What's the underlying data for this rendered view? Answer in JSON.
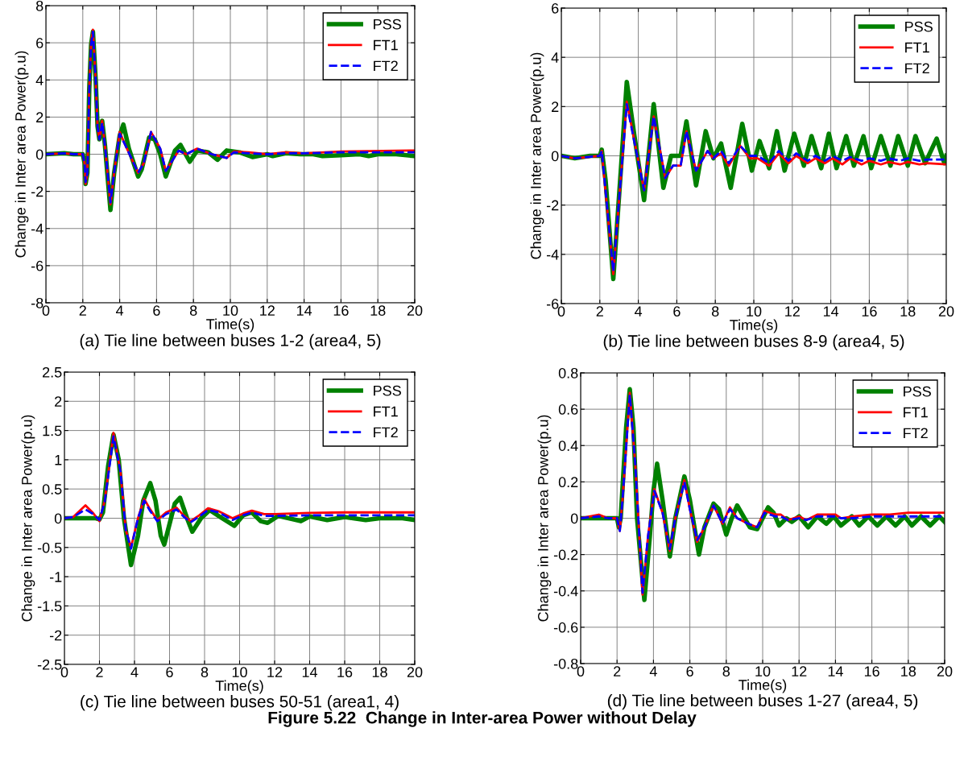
{
  "chart_data": [
    {
      "type": "line",
      "title": "(a) Tie line between buses 1-2 (area4, 5)",
      "xlabel": "Time(s)",
      "ylabel": "Change in Inter area Power(p.u)",
      "xlim": [
        0,
        20
      ],
      "ylim": [
        -8,
        8
      ],
      "xticks": [
        0,
        2,
        4,
        6,
        8,
        10,
        12,
        14,
        16,
        18,
        20
      ],
      "yticks": [
        -8,
        -6,
        -4,
        -2,
        0,
        2,
        4,
        6,
        8
      ],
      "grid": true,
      "legend": "top right",
      "series": [
        {
          "name": "PSS",
          "color": "#008000",
          "line_style": "solid",
          "x": [
            0,
            1,
            1.5,
            2,
            2.1,
            2.15,
            2.25,
            2.35,
            2.45,
            2.55,
            2.7,
            2.8,
            2.9,
            3.05,
            3.2,
            3.5,
            3.7,
            4.0,
            4.2,
            4.5,
            5.0,
            5.2,
            5.6,
            5.9,
            6.2,
            6.5,
            7.0,
            7.3,
            7.8,
            8.2,
            8.8,
            9.3,
            9.8,
            10.5,
            11.2,
            12,
            12.3,
            13,
            13.8,
            14.5,
            15,
            16,
            17,
            17.5,
            18,
            19,
            20
          ],
          "values": [
            0,
            0.05,
            0,
            0,
            -0.5,
            -1.6,
            -1.0,
            3.5,
            5.9,
            6.6,
            4,
            1.5,
            0.8,
            1.8,
            0.5,
            -3.0,
            -1.0,
            1.0,
            1.6,
            0.3,
            -1.2,
            -0.8,
            0.9,
            0.8,
            0,
            -1.2,
            0.2,
            0.5,
            -0.4,
            0.2,
            0.1,
            -0.3,
            0.2,
            0.1,
            -0.15,
            0,
            -0.1,
            0.05,
            0,
            0,
            -0.1,
            -0.05,
            0,
            -0.1,
            0,
            0,
            -0.1
          ]
        },
        {
          "name": "FT1",
          "color": "#ff0000",
          "line_style": "solid",
          "x": [
            0,
            1,
            1.5,
            2,
            2.1,
            2.15,
            2.25,
            2.35,
            2.45,
            2.55,
            2.7,
            2.8,
            2.9,
            3.05,
            3.2,
            3.5,
            3.7,
            4.0,
            4.3,
            5.0,
            5.3,
            5.7,
            6.2,
            6.5,
            7.2,
            7.6,
            8.2,
            9,
            9.8,
            10.2,
            11,
            12,
            13,
            14,
            16,
            20
          ],
          "values": [
            0,
            0.05,
            0,
            0,
            -0.5,
            -1.6,
            -1.0,
            3.5,
            6.0,
            6.7,
            4,
            1.5,
            0.8,
            1.8,
            0.5,
            -2.7,
            -1.0,
            1.2,
            0.5,
            -1.0,
            -0.5,
            1.2,
            0.3,
            -0.9,
            0.2,
            0,
            0.3,
            0,
            -0.2,
            0.15,
            0.1,
            0,
            0.1,
            0.05,
            0.15,
            0.2
          ]
        },
        {
          "name": "FT2",
          "color": "#0000ff",
          "line_style": "dashed",
          "x": [
            0,
            1,
            1.5,
            2,
            2.1,
            2.15,
            2.25,
            2.35,
            2.45,
            2.55,
            2.7,
            2.8,
            2.9,
            3.05,
            3.2,
            3.5,
            3.7,
            4.0,
            4.3,
            5.0,
            5.3,
            5.7,
            6.2,
            6.5,
            7.2,
            7.6,
            8.2,
            9,
            9.8,
            10.2,
            11,
            12,
            13,
            14,
            16,
            20
          ],
          "values": [
            0,
            0.05,
            0,
            0,
            -0.5,
            -1.5,
            -1.0,
            3.4,
            5.9,
            6.6,
            4,
            1.5,
            0.8,
            1.7,
            0.5,
            -2.6,
            -1.0,
            1.1,
            0.5,
            -1.0,
            -0.5,
            1.2,
            0.3,
            -0.9,
            0.2,
            0,
            0.3,
            0,
            -0.2,
            0.1,
            0.05,
            0,
            0.05,
            0.05,
            0.1,
            0.1
          ]
        }
      ]
    },
    {
      "type": "line",
      "title": "(b) Tie line between buses 8-9 (area4, 5)",
      "xlabel": "Time(s)",
      "ylabel": "Change in Inter area Power(p.u)",
      "xlim": [
        0,
        20
      ],
      "ylim": [
        -6,
        6
      ],
      "xticks": [
        0,
        2,
        4,
        6,
        8,
        10,
        12,
        14,
        16,
        18,
        20
      ],
      "yticks": [
        -6,
        -4,
        -2,
        0,
        2,
        4,
        6
      ],
      "grid": true,
      "legend": "top right",
      "series": [
        {
          "name": "PSS",
          "color": "#008000",
          "line_style": "solid",
          "x": [
            0,
            0.7,
            1.5,
            2.0,
            2.1,
            2.3,
            2.7,
            3.1,
            3.4,
            3.8,
            4.3,
            4.8,
            5.3,
            5.7,
            6.2,
            6.5,
            7.0,
            7.5,
            7.9,
            8.3,
            8.8,
            9.4,
            9.9,
            10.3,
            10.8,
            11.2,
            11.6,
            12.1,
            12.6,
            13.0,
            13.5,
            13.9,
            14.3,
            14.8,
            15.2,
            15.7,
            16.1,
            16.6,
            17.1,
            17.5,
            18.0,
            18.4,
            18.9,
            19.5,
            19.9,
            20
          ],
          "values": [
            0,
            -0.1,
            0,
            0,
            0.25,
            -1.0,
            -5.0,
            -0.5,
            3.0,
            0.8,
            -1.8,
            2.1,
            -1.3,
            0,
            0,
            1.4,
            -1.2,
            1.0,
            -0.1,
            0.5,
            -1.3,
            1.3,
            -0.6,
            0.6,
            -0.5,
            1.0,
            -0.6,
            0.9,
            -0.4,
            0.8,
            -0.5,
            0.9,
            -0.5,
            0.8,
            -0.4,
            0.8,
            -0.5,
            0.8,
            -0.4,
            0.8,
            -0.4,
            0.8,
            -0.3,
            0.7,
            -0.3,
            0
          ]
        },
        {
          "name": "FT1",
          "color": "#ff0000",
          "line_style": "solid",
          "x": [
            0,
            0.7,
            2.0,
            2.1,
            2.7,
            3.4,
            4.3,
            4.8,
            5.4,
            5.8,
            6.2,
            6.5,
            7.0,
            7.6,
            7.9,
            8.3,
            8.7,
            9.3,
            9.8,
            10.2,
            10.8,
            11.3,
            11.8,
            12.2,
            12.8,
            13.2,
            13.7,
            14.1,
            14.6,
            15.0,
            15.6,
            16.0,
            16.6,
            17.0,
            17.6,
            18.0,
            18.6,
            19,
            20
          ],
          "values": [
            0,
            -0.1,
            0,
            0.2,
            -4.8,
            2.2,
            -1.4,
            1.6,
            -0.9,
            -0.4,
            -0.4,
            1.0,
            -0.6,
            0.2,
            -0.1,
            0.1,
            -0.4,
            0.4,
            -0.1,
            -0.1,
            -0.4,
            0.1,
            -0.3,
            0,
            -0.3,
            -0.1,
            -0.3,
            -0.1,
            -0.35,
            -0.1,
            -0.35,
            -0.2,
            -0.35,
            -0.25,
            -0.35,
            -0.25,
            -0.35,
            -0.3,
            -0.35
          ]
        },
        {
          "name": "FT2",
          "color": "#0000ff",
          "line_style": "dashed",
          "x": [
            0,
            0.7,
            2.0,
            2.1,
            2.7,
            3.4,
            4.3,
            4.8,
            5.4,
            5.8,
            6.2,
            6.5,
            7.0,
            7.6,
            7.9,
            8.3,
            8.7,
            9.3,
            9.8,
            10.2,
            10.8,
            11.3,
            11.8,
            12.2,
            12.8,
            13.2,
            13.7,
            14.1,
            14.6,
            15.0,
            15.6,
            16.0,
            16.6,
            17.0,
            17.6,
            18.0,
            18.6,
            19,
            20
          ],
          "values": [
            0,
            -0.1,
            0,
            0.2,
            -4.7,
            2.1,
            -1.4,
            1.6,
            -0.9,
            -0.4,
            -0.4,
            1.0,
            -0.6,
            0.2,
            -0.1,
            0.2,
            -0.3,
            0.4,
            0,
            0,
            -0.3,
            0.2,
            -0.2,
            0.1,
            -0.2,
            0,
            -0.2,
            0,
            -0.2,
            -0.05,
            -0.2,
            -0.1,
            -0.2,
            -0.1,
            -0.2,
            -0.1,
            -0.2,
            -0.15,
            -0.15
          ]
        }
      ]
    },
    {
      "type": "line",
      "title": "(c) Tie line between buses 50-51 (area1, 4)",
      "xlabel": "Time(s)",
      "ylabel": "Change in Inter area Power(p.u)",
      "xlim": [
        0,
        20
      ],
      "ylim": [
        -2.5,
        2.5
      ],
      "xticks": [
        0,
        2,
        4,
        6,
        8,
        10,
        12,
        14,
        16,
        18,
        20
      ],
      "yticks": [
        -2.5,
        -2,
        -1.5,
        -1,
        -0.5,
        0,
        0.5,
        1,
        1.5,
        2,
        2.5
      ],
      "grid": true,
      "legend": "top right",
      "series": [
        {
          "name": "PSS",
          "color": "#008000",
          "line_style": "solid",
          "x": [
            0,
            1.8,
            2.0,
            2.2,
            2.5,
            2.8,
            3.1,
            3.4,
            3.8,
            4.2,
            4.5,
            4.9,
            5.2,
            5.5,
            5.7,
            6.0,
            6.3,
            6.6,
            7.0,
            7.3,
            7.8,
            8.3,
            9,
            9.7,
            10.2,
            10.7,
            11.2,
            11.6,
            12.2,
            12.8,
            13.5,
            14,
            15,
            16,
            17.2,
            18,
            19.3,
            20
          ],
          "values": [
            0,
            0,
            -0.02,
            0.1,
            0.9,
            1.43,
            1.0,
            0,
            -0.8,
            -0.3,
            0.3,
            0.6,
            0.3,
            -0.3,
            -0.45,
            -0.1,
            0.25,
            0.35,
            0,
            -0.23,
            0,
            0.14,
            0,
            -0.13,
            0.05,
            0.1,
            -0.05,
            -0.08,
            0.04,
            0,
            -0.05,
            0.03,
            -0.03,
            0.02,
            -0.03,
            0,
            0,
            -0.03
          ]
        },
        {
          "name": "FT1",
          "color": "#ff0000",
          "line_style": "solid",
          "x": [
            0,
            0.5,
            1.2,
            1.6,
            2.0,
            2.3,
            2.8,
            3.2,
            3.5,
            3.8,
            4.2,
            4.55,
            4.9,
            5.3,
            5.8,
            6.4,
            6.8,
            7.2,
            7.7,
            8.2,
            8.8,
            9.6,
            10.2,
            10.7,
            11.4,
            12,
            14,
            16,
            18,
            20
          ],
          "values": [
            0,
            0.02,
            0.22,
            0.1,
            -0.05,
            0.3,
            1.46,
            0.8,
            -0.2,
            -0.5,
            0,
            0.33,
            0.15,
            -0.03,
            0.1,
            0.18,
            0.05,
            -0.05,
            0.05,
            0.17,
            0.12,
            0,
            0.08,
            0.13,
            0.07,
            0.07,
            0.09,
            0.1,
            0.1,
            0.1
          ]
        },
        {
          "name": "FT2",
          "color": "#0000ff",
          "line_style": "dashed",
          "x": [
            0,
            0.5,
            1.2,
            1.6,
            2.0,
            2.3,
            2.8,
            3.2,
            3.5,
            3.8,
            4.2,
            4.55,
            4.9,
            5.3,
            5.8,
            6.4,
            6.8,
            7.2,
            7.7,
            8.2,
            8.8,
            9.6,
            10.2,
            10.7,
            11.4,
            12,
            14,
            16,
            18,
            20
          ],
          "values": [
            0,
            0.02,
            0.15,
            0.08,
            -0.03,
            0.28,
            1.4,
            0.8,
            -0.2,
            -0.52,
            0,
            0.3,
            0.12,
            -0.05,
            0.07,
            0.15,
            0.03,
            -0.07,
            0.03,
            0.14,
            0.1,
            -0.03,
            0.05,
            0.1,
            0.04,
            0.04,
            0.05,
            0.05,
            0.05,
            0.05
          ]
        }
      ]
    },
    {
      "type": "line",
      "title": "(d) Tie line between buses 1-27 (area4, 5)",
      "xlabel": "Time(s)",
      "ylabel": "Change in Inter area Power(p.u)",
      "xlim": [
        0,
        20
      ],
      "ylim": [
        -0.8,
        0.8
      ],
      "xticks": [
        0,
        2,
        4,
        6,
        8,
        10,
        12,
        14,
        16,
        18,
        20
      ],
      "yticks": [
        -0.8,
        -0.6,
        -0.4,
        -0.2,
        0,
        0.2,
        0.4,
        0.6,
        0.8
      ],
      "grid": true,
      "legend": "top right",
      "annotations": [
        "Figure 5.22  Change in Inter-area Power without Delay"
      ],
      "series": [
        {
          "name": "PSS",
          "color": "#008000",
          "line_style": "solid",
          "x": [
            0,
            1,
            2.0,
            2.1,
            2.2,
            2.5,
            2.7,
            2.9,
            3.1,
            3.5,
            3.8,
            4.0,
            4.2,
            4.5,
            4.9,
            5.2,
            5.7,
            6.0,
            6.5,
            6.8,
            7.3,
            7.6,
            8.0,
            8.3,
            8.6,
            9.0,
            9.3,
            9.7,
            10.0,
            10.3,
            10.6,
            10.9,
            11.3,
            11.6,
            12.0,
            12.5,
            13,
            13.5,
            13.9,
            14.3,
            14.9,
            15.3,
            15.8,
            16.3,
            16.8,
            17.3,
            17.8,
            18.2,
            18.7,
            19.2,
            19.7,
            20
          ],
          "values": [
            0,
            0,
            0,
            -0.05,
            0,
            0.5,
            0.71,
            0.5,
            0,
            -0.45,
            -0.1,
            0.15,
            0.3,
            0.1,
            -0.21,
            0,
            0.23,
            0.1,
            -0.2,
            -0.05,
            0.08,
            0.05,
            -0.09,
            0,
            0.07,
            0,
            -0.05,
            -0.06,
            0,
            0.06,
            0.03,
            -0.04,
            0,
            -0.02,
            0.01,
            -0.05,
            0.01,
            -0.03,
            0.01,
            -0.04,
            0.01,
            -0.04,
            0.01,
            -0.04,
            0.01,
            -0.04,
            0.01,
            -0.04,
            0.01,
            -0.04,
            0.01,
            -0.02
          ]
        },
        {
          "name": "FT1",
          "color": "#ff0000",
          "line_style": "solid",
          "x": [
            0,
            1,
            1.5,
            2.0,
            2.15,
            2.3,
            2.7,
            3.0,
            3.4,
            3.7,
            4.05,
            4.5,
            4.9,
            5.2,
            5.7,
            6.0,
            6.4,
            6.8,
            7.3,
            7.8,
            8.2,
            8.6,
            9.2,
            9.7,
            10.1,
            10.7,
            11,
            11.4,
            12,
            12.4,
            13,
            14,
            14.3,
            15,
            16,
            17,
            18,
            19,
            20
          ],
          "values": [
            0,
            0.02,
            0,
            0,
            -0.07,
            0.1,
            0.69,
            0.3,
            -0.42,
            -0.1,
            0.16,
            0.03,
            -0.18,
            0,
            0.21,
            0.05,
            -0.13,
            -0.05,
            0.07,
            -0.03,
            0.06,
            0,
            -0.03,
            -0.05,
            0.04,
            0.02,
            0.02,
            -0.01,
            0.01,
            -0.01,
            0.02,
            0.02,
            0,
            0.01,
            0.02,
            0.02,
            0.03,
            0.03,
            0.03
          ]
        },
        {
          "name": "FT2",
          "color": "#0000ff",
          "line_style": "dashed",
          "x": [
            0,
            1,
            1.5,
            2.0,
            2.15,
            2.3,
            2.7,
            3.0,
            3.4,
            3.7,
            4.05,
            4.5,
            4.9,
            5.2,
            5.7,
            6.0,
            6.4,
            6.8,
            7.3,
            7.8,
            8.2,
            8.6,
            9.2,
            9.7,
            10.1,
            10.7,
            11,
            11.4,
            12,
            12.4,
            13,
            14,
            14.3,
            15,
            16,
            17,
            18,
            19,
            20
          ],
          "values": [
            0,
            0.01,
            0,
            0,
            -0.07,
            0.1,
            0.68,
            0.3,
            -0.41,
            -0.1,
            0.15,
            0.03,
            -0.17,
            0,
            0.2,
            0.05,
            -0.12,
            -0.05,
            0.07,
            -0.03,
            0.05,
            0,
            -0.03,
            -0.05,
            0.03,
            0.01,
            0.01,
            -0.01,
            0,
            -0.01,
            0.01,
            0.01,
            0,
            0,
            0.01,
            0.01,
            0.01,
            0.01,
            0.01
          ]
        }
      ]
    }
  ]
}
